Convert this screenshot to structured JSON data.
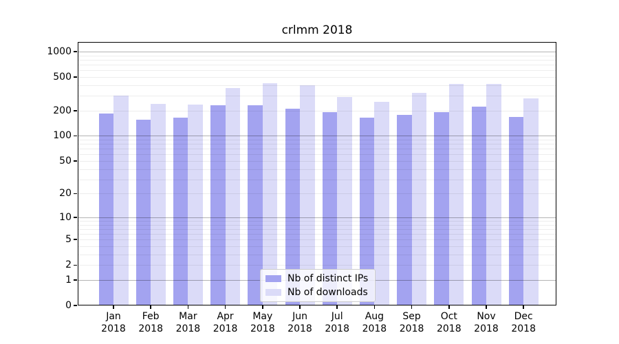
{
  "title": "crlmm 2018",
  "chart_data": {
    "type": "bar",
    "title": "crlmm 2018",
    "yscale": "log1p",
    "ylim": [
      0,
      1300
    ],
    "grid": "horizontal-on-top",
    "legend_position": "lower center",
    "categories": [
      "Jan 2018",
      "Feb 2018",
      "Mar 2018",
      "Apr 2018",
      "May 2018",
      "Jun 2018",
      "Jul 2018",
      "Aug 2018",
      "Sep 2018",
      "Oct 2018",
      "Nov 2018",
      "Dec 2018"
    ],
    "category_lines": [
      {
        "month": "Jan",
        "year": "2018"
      },
      {
        "month": "Feb",
        "year": "2018"
      },
      {
        "month": "Mar",
        "year": "2018"
      },
      {
        "month": "Apr",
        "year": "2018"
      },
      {
        "month": "May",
        "year": "2018"
      },
      {
        "month": "Jun",
        "year": "2018"
      },
      {
        "month": "Jul",
        "year": "2018"
      },
      {
        "month": "Aug",
        "year": "2018"
      },
      {
        "month": "Sep",
        "year": "2018"
      },
      {
        "month": "Oct",
        "year": "2018"
      },
      {
        "month": "Nov",
        "year": "2018"
      },
      {
        "month": "Dec",
        "year": "2018"
      }
    ],
    "series": [
      {
        "name": "Nb of distinct IPs",
        "color": "#a3a3f0",
        "values": [
          184,
          155,
          164,
          232,
          230,
          209,
          193,
          166,
          176,
          190,
          221,
          168
        ]
      },
      {
        "name": "Nb of downloads",
        "color": "#dbdbf8",
        "values": [
          299,
          240,
          237,
          368,
          421,
          401,
          289,
          254,
          326,
          414,
          414,
          279
        ]
      }
    ],
    "yticks": [
      0,
      1,
      2,
      5,
      10,
      20,
      50,
      100,
      200,
      500,
      1000
    ],
    "grid_major_values": [
      1,
      10,
      100,
      1000
    ],
    "grid_minor_values": [
      2,
      3,
      4,
      5,
      6,
      7,
      8,
      9,
      20,
      30,
      40,
      50,
      60,
      70,
      80,
      90,
      200,
      300,
      400,
      500,
      600,
      700,
      800,
      900
    ],
    "colors": {
      "grid_major": "#b3b3b3",
      "grid_minor": "#ededed",
      "axis": "#000000",
      "legend_border": "#cccccc"
    }
  }
}
